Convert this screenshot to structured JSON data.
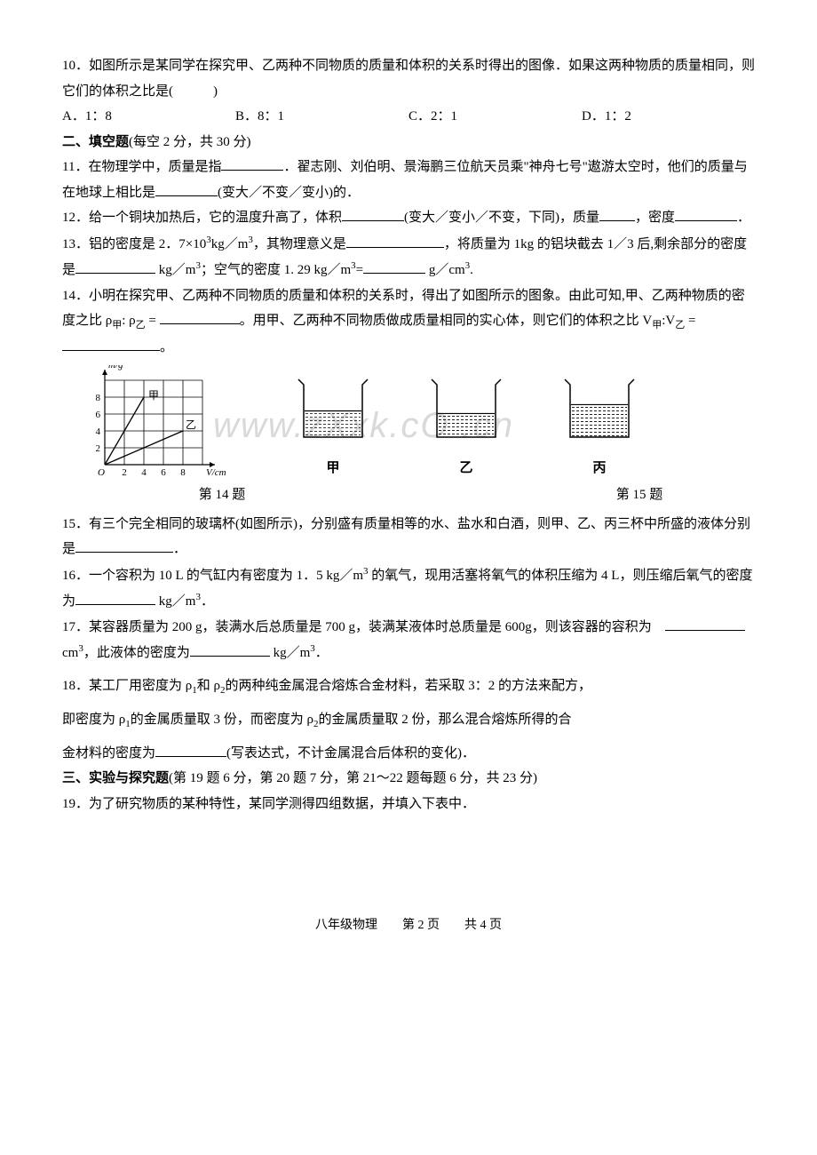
{
  "q10": {
    "text": "10．如图所示是某同学在探究甲、乙两种不同物质的质量和体积的关系时得出的图像．如果这两种物质的质量相同，则它们的体积之比是(　　　)",
    "options": {
      "A": "A．1：8",
      "B": "B．8：1",
      "C": "C．2：1",
      "D": "D．1：2"
    }
  },
  "section2": {
    "title": "二、填空题",
    "note": "(每空 2 分，共 30 分)"
  },
  "q11": {
    "a": "11．在物理学中，质量是指",
    "b": "．翟志刚、刘伯明、景海鹏三位航天员乘\"神舟七号\"遨游太空时，他们的质量与在地球上相比是",
    "c": "(变大／不变／变小)的．"
  },
  "q12": {
    "a": "12．给一个铜块加热后，它的温度升高了，体积",
    "b": "(变大／变小／不变，下同)，质量",
    "c": "，密度",
    "d": "．"
  },
  "q13": {
    "a": "13．铝的密度是 2．7×10",
    "sup1": "3",
    "b": "kg／m",
    "sup2": "3",
    "c": "，其物理意义是",
    "d": "，将质量为 1kg 的铝块截去 1／3 后,剩余部分的密度是",
    "e": " kg／m",
    "sup3": "3",
    "f": "；空气的密度 1. 29 kg／m",
    "sup4": "3",
    "g": "=",
    "h": " g／cm",
    "sup5": "3",
    "i": "."
  },
  "q14": {
    "a": "14．小明在探究甲、乙两种不同物质的质量和体积的关系时，得出了如图所示的图象。由此可知,甲、乙两种物质的密度之比 ρ",
    "asub": "甲",
    "b": ": ρ",
    "bsub": "乙",
    "c": " = ",
    "d": "。用甲、乙两种不同物质做成质量相同的实心体，则它们的体积之比 V",
    "dsub": "甲",
    "e": ":V",
    "esub": "乙",
    "f": " = ",
    "g": "。"
  },
  "chart14": {
    "ylabel": "m/g",
    "xlabel": "V/cm",
    "xlabel_sup": "3",
    "yticks": [
      2,
      4,
      6,
      8
    ],
    "xticks": [
      2,
      4,
      6,
      8
    ],
    "line_jia": {
      "label": "甲",
      "points": [
        [
          0,
          0
        ],
        [
          4,
          8
        ]
      ]
    },
    "line_yi": {
      "label": "乙",
      "points": [
        [
          0,
          0
        ],
        [
          8,
          4
        ]
      ]
    },
    "axis_color": "#000",
    "grid_color": "#000",
    "bgcolor": "#ffffff",
    "tick_font": 11
  },
  "beakers": {
    "labels": [
      "甲",
      "乙",
      "丙"
    ],
    "fill_levels": [
      0.5,
      0.45,
      0.62
    ],
    "stroke": "#000",
    "fill_pattern": "hatch"
  },
  "fig_captions": {
    "c14": "第 14 题",
    "c15": "第 15 题"
  },
  "q15": {
    "a": "15．有三个完全相同的玻璃杯(如图所示)，分别盛有质量相等的水、盐水和白酒，则甲、乙、丙三杯中所盛的液体分别是",
    "b": "．"
  },
  "q16": {
    "a": "16．一个容积为 10 L 的气缸内有密度为 1．5 kg／m",
    "sup1": "3",
    "b": " 的氧气，现用活塞将氧气的体积压缩为 4 L，则压缩后氧气的密度为",
    "c": " kg／m",
    "sup2": "3",
    "d": "．"
  },
  "q17": {
    "a": "17．某容器质量为 200 g，装满水后总质量是 700 g，装满某液体时总质量是 600g，则该容器的容积为　",
    "b": "cm",
    "sup1": "3",
    "c": "，此液体的密度为",
    "d": " kg／m",
    "sup2": "3",
    "e": "．"
  },
  "q18": {
    "a": "18．某工厂用密度为 ρ",
    "asub": "1",
    "b": "和 ρ",
    "bsub": "2",
    "c": "的两种纯金属混合熔炼合金材料，若采取 3：2 的方法来配方，",
    "d": "即密度为 ρ",
    "dsub": "1",
    "e": "的金属质量取 3 份，而密度为 ρ",
    "esub": "2",
    "f": "的金属质量取 2 份，那么混合熔炼所得的合",
    "g": "金材料的密度为",
    "h": "(写表达式，不计金属混合后体积的变化)．"
  },
  "section3": {
    "title": "三、实验与探究题",
    "note": "(第 19 题 6 分，第 20 题 7 分，第 21～22 题每题 6 分，共 23 分)"
  },
  "q19": "19．为了研究物质的某种特性，某同学测得四组数据，并填入下表中．",
  "watermark": "www.zXxk.cO  .cn",
  "footer": {
    "a": "八年级物理",
    "b": "第 2 页",
    "c": "共 4 页"
  }
}
